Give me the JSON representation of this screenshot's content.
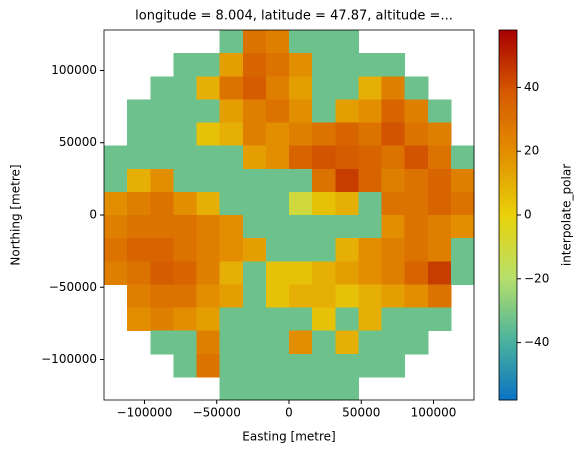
{
  "chart_data": {
    "type": "heatmap",
    "title": "longitude = 8.004, latitude = 47.87, altitude =...",
    "xlabel": "Easting [metre]",
    "ylabel": "Northing [metre]",
    "colorbar_label": "interpolate_polar",
    "xlim": [
      -128000,
      128000
    ],
    "ylim": [
      -128000,
      128000
    ],
    "xticks": [
      {
        "value": -100000,
        "label": "−100000"
      },
      {
        "value": -50000,
        "label": "−50000"
      },
      0,
      50000,
      100000
    ],
    "yticks": [
      {
        "value": -100000,
        "label": "−100000"
      },
      {
        "value": -50000,
        "label": "−50000"
      },
      0,
      50000,
      100000
    ],
    "clim": [
      -58,
      58
    ],
    "cticks": [
      {
        "value": -40,
        "label": "−40"
      },
      {
        "value": -20,
        "label": "−20"
      },
      0,
      20,
      40
    ],
    "colorscale": [
      "#0a72c4",
      "#4db49c",
      "#b8e06a",
      "#e8d20a",
      "#e38f00",
      "#d65a00",
      "#a90000"
    ],
    "x": [
      -120000,
      -104000,
      -88000,
      -72000,
      -56000,
      -40000,
      -24000,
      -8000,
      8000,
      24000,
      40000,
      56000,
      72000,
      88000,
      104000,
      120000
    ],
    "y": [
      120000,
      104000,
      88000,
      72000,
      56000,
      40000,
      24000,
      8000,
      -8000,
      -24000,
      -40000,
      -56000,
      -72000,
      -88000,
      -104000,
      -120000
    ],
    "z": [
      [
        null,
        null,
        null,
        null,
        null,
        -33,
        30,
        25,
        -33,
        -33,
        -33,
        null,
        null,
        null,
        null,
        null
      ],
      [
        null,
        null,
        null,
        -33,
        -33,
        15,
        35,
        30,
        20,
        -33,
        -33,
        -33,
        -33,
        null,
        null,
        null
      ],
      [
        null,
        null,
        -33,
        -33,
        10,
        30,
        38,
        25,
        15,
        -33,
        -33,
        10,
        25,
        -33,
        null,
        null
      ],
      [
        null,
        -33,
        -33,
        -33,
        -33,
        15,
        25,
        30,
        20,
        -33,
        15,
        20,
        35,
        25,
        -33,
        null
      ],
      [
        null,
        -33,
        -33,
        -33,
        5,
        10,
        25,
        20,
        25,
        30,
        35,
        30,
        40,
        30,
        25,
        null
      ],
      [
        -33,
        -33,
        -33,
        -33,
        -33,
        -33,
        15,
        20,
        35,
        40,
        38,
        35,
        30,
        40,
        30,
        -33
      ],
      [
        -33,
        10,
        20,
        -33,
        -33,
        -33,
        -33,
        -33,
        -33,
        30,
        45,
        35,
        25,
        30,
        35,
        25
      ],
      [
        20,
        25,
        30,
        20,
        10,
        -33,
        -33,
        -33,
        -10,
        5,
        10,
        -33,
        30,
        30,
        35,
        30
      ],
      [
        25,
        30,
        30,
        30,
        25,
        20,
        -33,
        -33,
        -33,
        -33,
        -33,
        -33,
        20,
        30,
        25,
        20
      ],
      [
        30,
        35,
        35,
        30,
        25,
        20,
        15,
        -33,
        -33,
        -33,
        10,
        20,
        25,
        30,
        25,
        -33
      ],
      [
        25,
        30,
        38,
        35,
        25,
        10,
        -33,
        5,
        5,
        10,
        15,
        20,
        25,
        35,
        45,
        -33
      ],
      [
        null,
        25,
        30,
        30,
        20,
        15,
        -33,
        5,
        10,
        10,
        5,
        10,
        15,
        20,
        30,
        null
      ],
      [
        null,
        20,
        25,
        20,
        15,
        -33,
        -33,
        -33,
        -33,
        5,
        -33,
        10,
        -33,
        -33,
        -33,
        null
      ],
      [
        null,
        null,
        -33,
        -33,
        25,
        -33,
        -33,
        -33,
        20,
        -33,
        10,
        -33,
        -33,
        -33,
        null,
        null
      ],
      [
        null,
        null,
        null,
        -33,
        30,
        -33,
        -33,
        -33,
        -33,
        -33,
        -33,
        -33,
        -33,
        null,
        null,
        null
      ],
      [
        null,
        null,
        null,
        null,
        null,
        -33,
        -33,
        -33,
        -33,
        -33,
        -33,
        null,
        null,
        null,
        null,
        null
      ]
    ]
  }
}
